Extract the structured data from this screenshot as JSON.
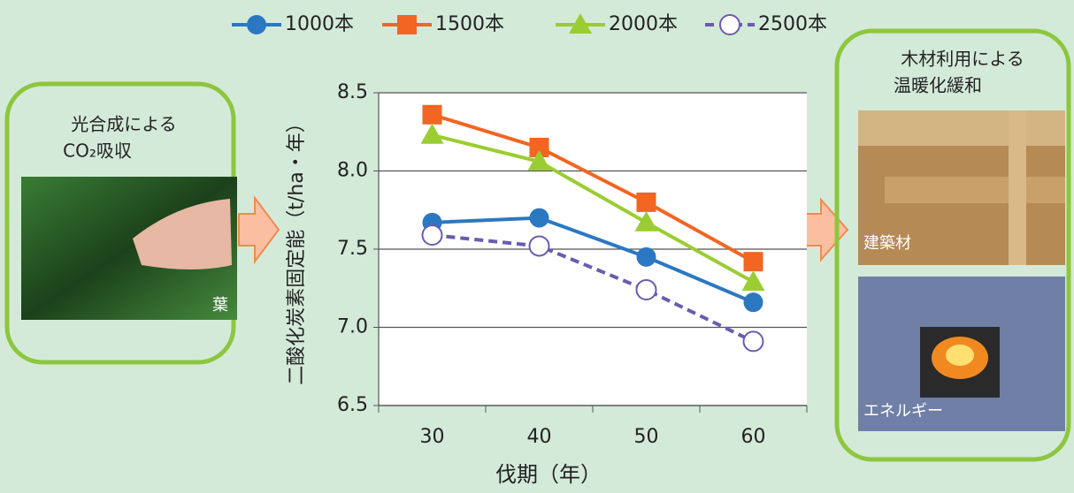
{
  "chart_data": {
    "type": "line",
    "x_label": "伐期（年）",
    "y_label": "二酸化炭素固定能（t/ha・年）",
    "categories": [
      "30",
      "40",
      "50",
      "60"
    ],
    "series": [
      {
        "name": "1000本",
        "color": "#2a78c2",
        "marker": "circle",
        "dash": false,
        "values": [
          7.67,
          7.7,
          7.45,
          7.16
        ]
      },
      {
        "name": "1500本",
        "color": "#f26522",
        "marker": "square",
        "dash": false,
        "values": [
          8.36,
          8.15,
          7.8,
          7.42
        ]
      },
      {
        "name": "2000本",
        "color": "#9acd32",
        "marker": "triangle",
        "dash": false,
        "values": [
          8.23,
          8.06,
          7.67,
          7.29
        ]
      },
      {
        "name": "2500本",
        "color": "#6b5bb0",
        "marker": "open-circle",
        "dash": true,
        "values": [
          7.59,
          7.52,
          7.24,
          6.91
        ]
      }
    ],
    "ylim": [
      6.5,
      8.5
    ],
    "yticks": [
      6.5,
      {
        "value": 7.0,
        "label": "7.0"
      },
      7.5,
      {
        "value": 8.0,
        "label": "8.0"
      },
      8.5
    ],
    "grid": true
  },
  "left_panel": {
    "lines": [
      "光合成による",
      "CO₂吸収"
    ],
    "photo_label": "葉"
  },
  "right_panel": {
    "lines": [
      "木材利用による",
      "温暖化緩和"
    ],
    "photo_labels": [
      "建築材",
      "エネルギー"
    ]
  }
}
